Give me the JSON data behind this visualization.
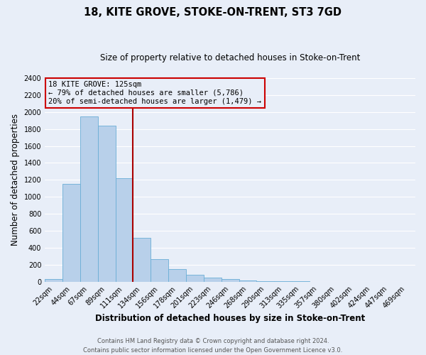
{
  "title": "18, KITE GROVE, STOKE-ON-TRENT, ST3 7GD",
  "subtitle": "Size of property relative to detached houses in Stoke-on-Trent",
  "xlabel": "Distribution of detached houses by size in Stoke-on-Trent",
  "ylabel": "Number of detached properties",
  "bin_labels": [
    "22sqm",
    "44sqm",
    "67sqm",
    "89sqm",
    "111sqm",
    "134sqm",
    "156sqm",
    "178sqm",
    "201sqm",
    "223sqm",
    "246sqm",
    "268sqm",
    "290sqm",
    "313sqm",
    "335sqm",
    "357sqm",
    "380sqm",
    "402sqm",
    "424sqm",
    "447sqm",
    "469sqm"
  ],
  "bar_values": [
    30,
    1150,
    1950,
    1840,
    1220,
    520,
    265,
    150,
    80,
    45,
    30,
    15,
    8,
    3,
    2,
    1,
    1,
    0,
    0,
    0,
    0
  ],
  "bar_color": "#b8d0ea",
  "bar_edge_color": "#6aaed6",
  "vline_color": "#aa0000",
  "ylim": [
    0,
    2400
  ],
  "yticks": [
    0,
    200,
    400,
    600,
    800,
    1000,
    1200,
    1400,
    1600,
    1800,
    2000,
    2200,
    2400
  ],
  "annotation_title": "18 KITE GROVE: 125sqm",
  "annotation_line1": "← 79% of detached houses are smaller (5,786)",
  "annotation_line2": "20% of semi-detached houses are larger (1,479) →",
  "annotation_box_color": "#cc0000",
  "footer_line1": "Contains HM Land Registry data © Crown copyright and database right 2024.",
  "footer_line2": "Contains public sector information licensed under the Open Government Licence v3.0.",
  "background_color": "#e8eef8",
  "grid_color": "#ffffff",
  "title_fontsize": 10.5,
  "subtitle_fontsize": 8.5,
  "xlabel_fontsize": 8.5,
  "ylabel_fontsize": 8.5,
  "tick_fontsize": 7,
  "annotation_fontsize": 7.5,
  "footer_fontsize": 6
}
